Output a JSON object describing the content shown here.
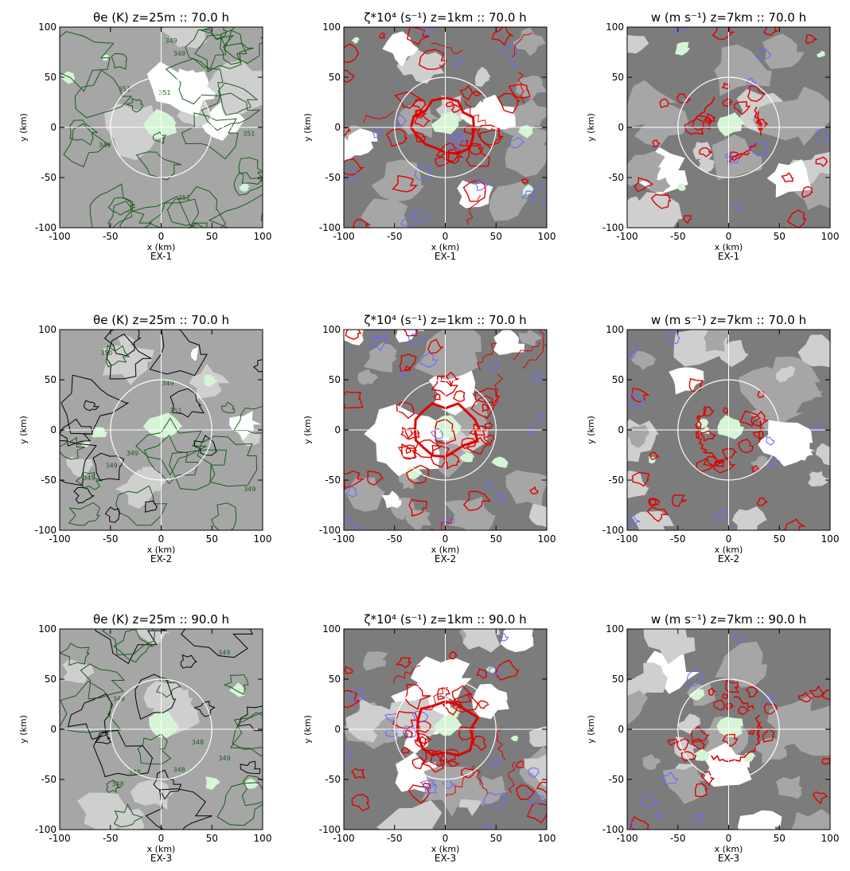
{
  "figure": {
    "rows": [
      {
        "label": "EX-1",
        "titles": [
          "θe (K) z=25m :: 70.0 h",
          "ζ*10⁴ (s⁻¹) z=1km :: 70.0 h",
          "w (m s⁻¹) z=7km :: 70.0 h"
        ]
      },
      {
        "label": "EX-2",
        "titles": [
          "θe (K) z=25m :: 70.0 h",
          "ζ*10⁴ (s⁻¹) z=1km :: 70.0 h",
          "w (m s⁻¹) z=7km :: 70.0 h"
        ]
      },
      {
        "label": "EX-3",
        "titles": [
          "θe (K) z=25m :: 90.0 h",
          "ζ*10⁴ (s⁻¹) z=1km :: 90.0 h",
          "w (m s⁻¹) z=7km :: 90.0 h"
        ]
      }
    ],
    "xlabel": "x (km)",
    "ylabel": "y (km)"
  },
  "colors": {
    "background": "#7c7c7c",
    "mid_gray": "#a6a6a6",
    "light_gray": "#cfcfcf",
    "white": "#ffffff",
    "pale_green": "#d6f5d6",
    "dark_green": "#1a5c1a",
    "red": "#e00000",
    "blue": "#6a6aff"
  },
  "chart_data": [
    {
      "type": "contour",
      "panel": "EX-1 theta_e",
      "title": "θe (K) z=25m :: 70.0 h",
      "xlabel": "x (km)",
      "ylabel": "y (km)",
      "xlim": [
        -100,
        100
      ],
      "ylim": [
        -100,
        100
      ],
      "xticks": [
        -100,
        -50,
        0,
        50,
        100
      ],
      "yticks": [
        -100,
        -50,
        0,
        50,
        100
      ],
      "contour_labels": [
        "351",
        "351",
        "351",
        "349",
        "351",
        "349",
        "349"
      ],
      "rmw_circle_radius_km": 50
    },
    {
      "type": "contour",
      "panel": "EX-1 vorticity",
      "title": "ζ*10⁴ (s⁻¹) z=1km :: 70.0 h",
      "xlabel": "x (km)",
      "ylabel": "",
      "xlim": [
        -100,
        100
      ],
      "ylim": [
        -100,
        100
      ],
      "xticks": [
        -100,
        -50,
        0,
        50,
        100
      ],
      "yticks": [
        -100,
        -50,
        0,
        50,
        100
      ],
      "rmw_circle_radius_km": 50
    },
    {
      "type": "contour",
      "panel": "EX-1 vertical velocity",
      "title": "w (m s⁻¹) z=7km :: 70.0 h",
      "xlabel": "x (km)",
      "ylabel": "",
      "xlim": [
        -100,
        100
      ],
      "ylim": [
        -100,
        100
      ],
      "xticks": [
        -100,
        -50,
        0,
        50,
        100
      ],
      "yticks": [
        -100,
        -50,
        0,
        50,
        100
      ],
      "rmw_circle_radius_km": 50
    },
    {
      "type": "contour",
      "panel": "EX-2 theta_e",
      "title": "θe (K) z=25m :: 70.0 h",
      "xlabel": "x (km)",
      "ylabel": "y (km)",
      "xlim": [
        -100,
        100
      ],
      "ylim": [
        -100,
        100
      ],
      "xticks": [
        -100,
        -50,
        0,
        50,
        100
      ],
      "yticks": [
        -100,
        -50,
        0,
        50,
        100
      ],
      "contour_labels": [
        "351",
        "349",
        "349",
        "349",
        "349",
        "350",
        "349"
      ],
      "rmw_circle_radius_km": 50
    },
    {
      "type": "contour",
      "panel": "EX-2 vorticity",
      "title": "ζ*10⁴ (s⁻¹) z=1km :: 70.0 h",
      "xlabel": "x (km)",
      "ylabel": "",
      "xlim": [
        -100,
        100
      ],
      "ylim": [
        -100,
        100
      ],
      "xticks": [
        -100,
        -50,
        0,
        50,
        100
      ],
      "yticks": [
        -100,
        -50,
        0,
        50,
        100
      ],
      "rmw_circle_radius_km": 50
    },
    {
      "type": "contour",
      "panel": "EX-2 vertical velocity",
      "title": "w (m s⁻¹) z=7km :: 70.0 h",
      "xlabel": "x (km)",
      "ylabel": "",
      "xlim": [
        -100,
        100
      ],
      "ylim": [
        -100,
        100
      ],
      "xticks": [
        -100,
        -50,
        0,
        50,
        100
      ],
      "yticks": [
        -100,
        -50,
        0,
        50,
        100
      ],
      "rmw_circle_radius_km": 50
    },
    {
      "type": "contour",
      "panel": "EX-3 theta_e",
      "title": "θe (K) z=25m :: 90.0 h",
      "xlabel": "x (km)",
      "ylabel": "y (km)",
      "xlim": [
        -100,
        100
      ],
      "ylim": [
        -100,
        100
      ],
      "xticks": [
        -100,
        -50,
        0,
        50,
        100
      ],
      "yticks": [
        -100,
        -50,
        0,
        50,
        100
      ],
      "contour_labels": [
        "348",
        "348",
        "348",
        "349",
        "349",
        "348",
        "348"
      ],
      "rmw_circle_radius_km": 50
    },
    {
      "type": "contour",
      "panel": "EX-3 vorticity",
      "title": "ζ*10⁴ (s⁻¹) z=1km :: 90.0 h",
      "xlabel": "x (km)",
      "ylabel": "",
      "xlim": [
        -100,
        100
      ],
      "ylim": [
        -100,
        100
      ],
      "xticks": [
        -100,
        -50,
        0,
        50,
        100
      ],
      "yticks": [
        -100,
        -50,
        0,
        50,
        100
      ],
      "rmw_circle_radius_km": 50
    },
    {
      "type": "contour",
      "panel": "EX-3 vertical velocity",
      "title": "w (m s⁻¹) z=7km :: 90.0 h",
      "xlabel": "x (km)",
      "ylabel": "",
      "xlim": [
        -100,
        100
      ],
      "ylim": [
        -100,
        100
      ],
      "xticks": [
        -100,
        -50,
        0,
        50,
        100
      ],
      "yticks": [
        -100,
        -50,
        0,
        50,
        100
      ],
      "rmw_circle_radius_km": 50
    }
  ]
}
